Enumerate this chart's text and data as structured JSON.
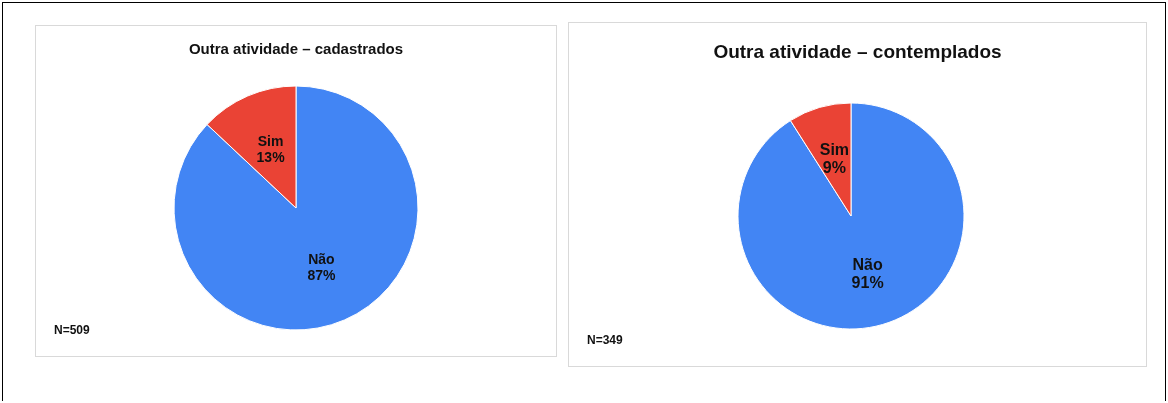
{
  "chart_data": [
    {
      "type": "pie",
      "title": "Outra atividade – cadastrados",
      "categories": [
        "Não",
        "Sim"
      ],
      "values": [
        87,
        13
      ],
      "value_labels": [
        "87%",
        "13%"
      ],
      "colors": [
        "#4285f4",
        "#ea4335"
      ],
      "legend": false,
      "annotations": [
        "N=509"
      ]
    },
    {
      "type": "pie",
      "title": "Outra atividade – contemplados",
      "categories": [
        "Não",
        "Sim"
      ],
      "values": [
        91,
        9
      ],
      "value_labels": [
        "91%",
        "9%"
      ],
      "colors": [
        "#4285f4",
        "#ea4335"
      ],
      "legend": false,
      "annotations": [
        "N=349"
      ]
    }
  ]
}
